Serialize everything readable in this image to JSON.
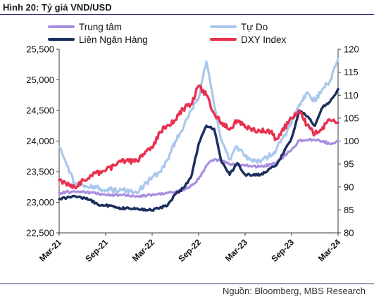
{
  "title": "Hình 20: Tỷ giá VND/USD",
  "source": "Nguồn: Bloomberg, MBS Research",
  "colors": {
    "trung_tam": "#a98ee0",
    "lien_ngan_hang": "#1b2f5e",
    "tu_do": "#aac8ec",
    "dxy": "#e8304f",
    "axis": "#3a3a3a",
    "rule": "#2a2a6a"
  },
  "chart_data": {
    "type": "line",
    "title": "Hình 20: Tỷ giá VND/USD",
    "x_tick_labels": [
      "Mar-21",
      "Sep-21",
      "Mar-22",
      "Sep-22",
      "Mar-23",
      "Sep-23",
      "Mar-24"
    ],
    "x_tick_dates": [
      "2021-03",
      "2021-09",
      "2022-03",
      "2022-09",
      "2023-03",
      "2023-09",
      "2024-03"
    ],
    "y_left": {
      "range": [
        22500,
        25500
      ],
      "ticks": [
        22500,
        23000,
        23500,
        24000,
        24500,
        25000,
        25500
      ],
      "tick_labels": [
        "22,500",
        "23,000",
        "23,500",
        "24,000",
        "24,500",
        "25,000",
        "25,500"
      ]
    },
    "y_right": {
      "range": [
        80,
        120
      ],
      "ticks": [
        80,
        85,
        90,
        95,
        100,
        105,
        110,
        115,
        120
      ],
      "tick_labels": [
        "80",
        "85",
        "90",
        "95",
        "100",
        "105",
        "110",
        "115",
        "120"
      ]
    },
    "grid": false,
    "legend_position": "top",
    "series": [
      {
        "name": "Trung tâm",
        "axis": "left",
        "x": [
          "2021-03",
          "2021-05",
          "2021-07",
          "2021-09",
          "2021-11",
          "2022-01",
          "2022-03",
          "2022-05",
          "2022-07",
          "2022-08",
          "2022-09",
          "2022-10",
          "2022-11",
          "2022-12",
          "2023-01",
          "2023-03",
          "2023-05",
          "2023-07",
          "2023-09",
          "2023-10",
          "2023-11",
          "2023-12",
          "2024-01",
          "2024-02",
          "2024-03"
        ],
        "y": [
          23150,
          23180,
          23160,
          23120,
          23120,
          23100,
          23120,
          23150,
          23200,
          23270,
          23380,
          23600,
          23700,
          23680,
          23620,
          23600,
          23580,
          23640,
          23860,
          24010,
          24020,
          24020,
          24000,
          23950,
          24000
        ]
      },
      {
        "name": "Liên Ngân Hàng",
        "axis": "left",
        "x": [
          "2021-03",
          "2021-05",
          "2021-07",
          "2021-08",
          "2021-09",
          "2021-11",
          "2022-01",
          "2022-03",
          "2022-05",
          "2022-06",
          "2022-07",
          "2022-08",
          "2022-09",
          "2022-10",
          "2022-11",
          "2022-12",
          "2023-01",
          "2023-02",
          "2023-03",
          "2023-05",
          "2023-07",
          "2023-09",
          "2023-10",
          "2023-11",
          "2023-12",
          "2024-01",
          "2024-02",
          "2024-03"
        ],
        "y": [
          23050,
          23100,
          23040,
          22960,
          22950,
          22900,
          22900,
          22870,
          22950,
          23130,
          23230,
          23400,
          23950,
          24250,
          24200,
          23650,
          23450,
          23640,
          23450,
          23450,
          23600,
          24050,
          24500,
          24400,
          24250,
          24550,
          24650,
          24850
        ]
      },
      {
        "name": "Tự Do",
        "axis": "left",
        "x": [
          "2021-03",
          "2021-04",
          "2021-05",
          "2021-07",
          "2021-09",
          "2021-11",
          "2022-01",
          "2022-03",
          "2022-04",
          "2022-05",
          "2022-06",
          "2022-07",
          "2022-08",
          "2022-09",
          "2022-10",
          "2022-11",
          "2022-12",
          "2023-01",
          "2023-02",
          "2023-03",
          "2023-05",
          "2023-07",
          "2023-09",
          "2023-10",
          "2023-11",
          "2023-12",
          "2024-01",
          "2024-02",
          "2024-03"
        ],
        "y": [
          23900,
          23600,
          23300,
          23250,
          23200,
          23200,
          23150,
          23400,
          23500,
          23700,
          24000,
          24200,
          24500,
          24700,
          25300,
          24600,
          24000,
          23700,
          23900,
          23750,
          23650,
          23850,
          24300,
          24600,
          24800,
          24650,
          24850,
          25000,
          25350
        ]
      },
      {
        "name": "DXY Index",
        "axis": "right",
        "x": [
          "2021-03",
          "2021-05",
          "2021-07",
          "2021-09",
          "2021-11",
          "2022-01",
          "2022-03",
          "2022-04",
          "2022-05",
          "2022-06",
          "2022-07",
          "2022-08",
          "2022-09",
          "2022-10",
          "2022-11",
          "2022-12",
          "2023-01",
          "2023-02",
          "2023-03",
          "2023-05",
          "2023-06",
          "2023-07",
          "2023-09",
          "2023-10",
          "2023-11",
          "2023-12",
          "2024-01",
          "2024-02",
          "2024-03"
        ],
        "y": [
          91.5,
          90.0,
          92.5,
          93.5,
          95.5,
          95.8,
          98.5,
          102,
          103.5,
          104.5,
          107,
          108,
          112,
          110,
          106,
          104,
          102.5,
          104.5,
          103,
          102,
          102.5,
          100.5,
          105,
          106.5,
          103.5,
          101.5,
          103,
          104.5,
          104
        ]
      }
    ]
  },
  "legend": [
    {
      "label": "Trung tâm",
      "color_key": "trung_tam"
    },
    {
      "label": "Tự Do",
      "color_key": "tu_do"
    },
    {
      "label": "Liên Ngân Hàng",
      "color_key": "lien_ngan_hang"
    },
    {
      "label": "DXY Index",
      "color_key": "dxy"
    }
  ]
}
